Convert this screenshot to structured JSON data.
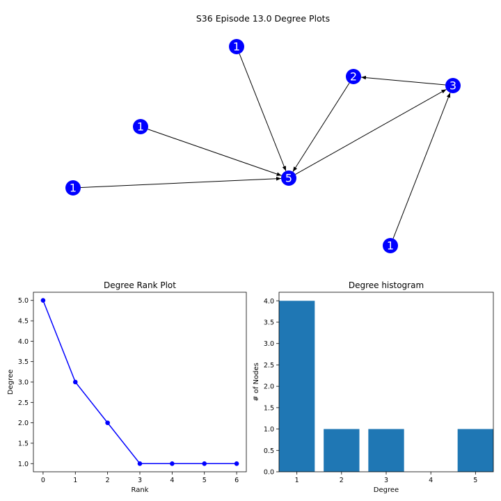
{
  "figure": {
    "title": "S36 Episode 13.0 Degree Plots"
  },
  "colors": {
    "node": "#0000ff",
    "node_label": "#ffffff",
    "edge": "#000000",
    "rank_line": "#0000ff",
    "hist_bar": "#1f77b4",
    "axis": "#000000"
  },
  "graph": {
    "type": "directed-network",
    "nodes": [
      {
        "id": "n_top",
        "label": "1"
      },
      {
        "id": "n_two",
        "label": "2"
      },
      {
        "id": "n_three",
        "label": "3"
      },
      {
        "id": "n_mid_left",
        "label": "1"
      },
      {
        "id": "n_far_left",
        "label": "1"
      },
      {
        "id": "n_hub",
        "label": "5"
      },
      {
        "id": "n_bottom",
        "label": "1"
      }
    ],
    "edges": [
      {
        "from": "n_top",
        "to": "n_hub"
      },
      {
        "from": "n_mid_left",
        "to": "n_hub"
      },
      {
        "from": "n_far_left",
        "to": "n_hub"
      },
      {
        "from": "n_two",
        "to": "n_hub"
      },
      {
        "from": "n_hub",
        "to": "n_three"
      },
      {
        "from": "n_three",
        "to": "n_two"
      },
      {
        "from": "n_bottom",
        "to": "n_three"
      }
    ]
  },
  "chart_data": [
    {
      "type": "line",
      "title": "Degree Rank Plot",
      "xlabel": "Rank",
      "ylabel": "Degree",
      "x": [
        0,
        1,
        2,
        3,
        4,
        5,
        6
      ],
      "series": [
        {
          "values": [
            5,
            3,
            2,
            1,
            1,
            1,
            1
          ]
        }
      ],
      "marker": "circle",
      "xlim": [
        -0.3,
        6.3
      ],
      "ylim": [
        0.8,
        5.2
      ],
      "xticks": [
        "0",
        "1",
        "2",
        "3",
        "4",
        "5",
        "6"
      ],
      "yticks": [
        "1.0",
        "1.5",
        "2.0",
        "2.5",
        "3.0",
        "3.5",
        "4.0",
        "4.5",
        "5.0"
      ],
      "grid": false
    },
    {
      "type": "bar",
      "title": "Degree histogram",
      "xlabel": "Degree",
      "ylabel": "# of Nodes",
      "categories": [
        "1",
        "2",
        "3",
        "5"
      ],
      "x": [
        1,
        2,
        3,
        5
      ],
      "values": [
        4,
        1,
        1,
        1
      ],
      "xlim": [
        0.6,
        5.4
      ],
      "ylim": [
        0,
        4.2
      ],
      "xticks": [
        "1",
        "2",
        "3",
        "4",
        "5"
      ],
      "yticks": [
        "0.0",
        "0.5",
        "1.0",
        "1.5",
        "2.0",
        "2.5",
        "3.0",
        "3.5",
        "4.0"
      ],
      "grid": false
    }
  ]
}
